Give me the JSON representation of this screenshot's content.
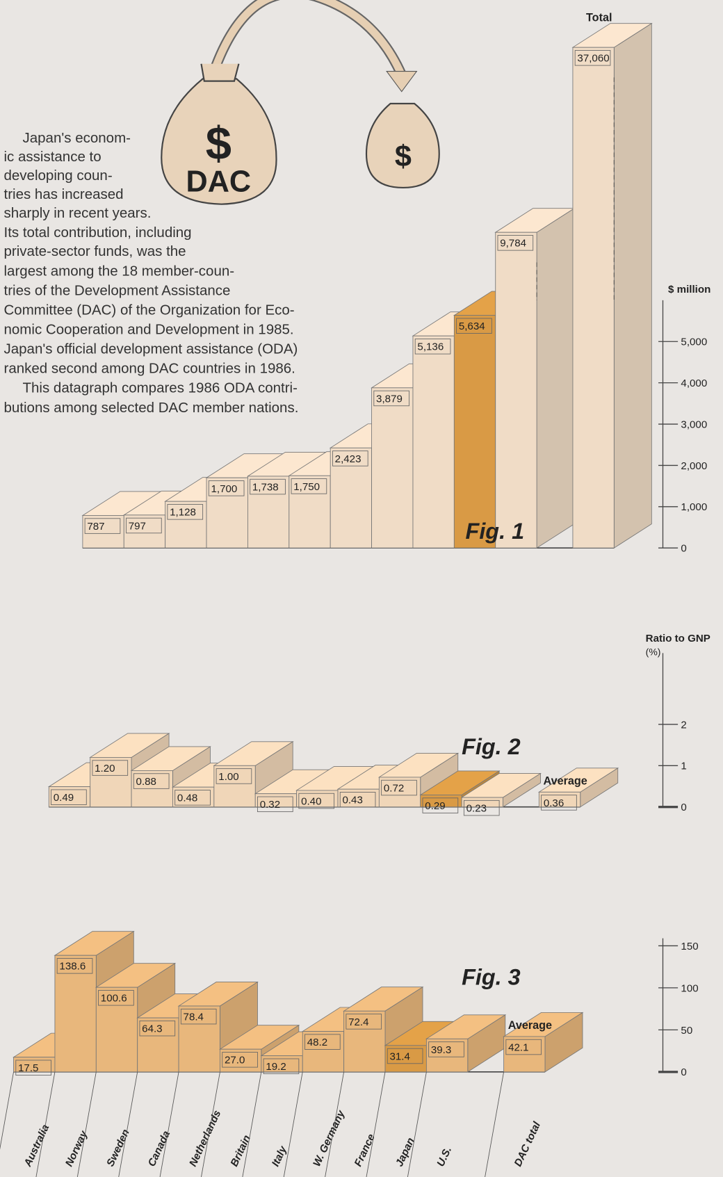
{
  "intro": {
    "lines": [
      "Japan's econom-",
      "ic assistance to",
      "developing coun-",
      "tries has increased",
      "sharply in recent years.",
      "Its total contribution, including",
      "private-sector funds, was the",
      "largest among the 18 member-coun-",
      "tries of the Development Assistance",
      "Committee (DAC) of the Organization for Eco-",
      "nomic Cooperation and Development in 1985.",
      "Japan's official development assistance (ODA)",
      "ranked second among DAC countries in 1986.",
      "This datagraph compares 1986 ODA contri-",
      "butions among selected DAC member nations."
    ]
  },
  "illustration": {
    "large_bag": [
      "$",
      "DAC"
    ],
    "small_bag": "$"
  },
  "chart_data": [
    {
      "type": "bar",
      "title": "Fig. 1",
      "y_label": "$ million",
      "last_label": "Total",
      "categories": [
        "Australia",
        "Norway",
        "Sweden",
        "Canada",
        "Netherlands",
        "Britain",
        "Italy",
        "W. Germany",
        "France",
        "Japan",
        "U.S.",
        "DAC total"
      ],
      "values": [
        787,
        797,
        1128,
        1700,
        1738,
        1750,
        2423,
        3879,
        5136,
        5634,
        9784,
        37060
      ],
      "value_labels": [
        "787",
        "797",
        "1,128",
        "1,700",
        "1,738",
        "1,750",
        "2,423",
        "3,879",
        "5,136",
        "5,634",
        "9,784",
        "37,060"
      ],
      "colors": [
        "#f0dcc6",
        "#f0dcc6",
        "#f0dcc6",
        "#f0dcc6",
        "#f0dcc6",
        "#f0dcc6",
        "#f0dcc6",
        "#f0dcc6",
        "#f0dcc6",
        "#d99a45",
        "#f0dcc6",
        "#f0dcc6"
      ],
      "ylim": [
        0,
        5000
      ],
      "scale_break": true,
      "yticks": [
        0,
        {
          "value": 1000,
          "label": "1,000"
        },
        {
          "value": 2000,
          "label": "2,000"
        },
        {
          "value": 3000,
          "label": "3,000"
        },
        {
          "value": 4000,
          "label": "4,000"
        },
        {
          "value": 5000,
          "label": "5,000"
        }
      ]
    },
    {
      "type": "bar",
      "title": "Fig. 2",
      "y_label": "Ratio to GNP",
      "y_unit": "(%)",
      "last_label": "Average",
      "values": [
        0.49,
        1.2,
        0.88,
        0.48,
        1.0,
        0.32,
        0.4,
        0.43,
        0.72,
        0.29,
        0.23,
        0.36
      ],
      "value_labels": [
        "0.49",
        "1.20",
        "0.88",
        "0.48",
        "1.00",
        "0.32",
        "0.40",
        "0.43",
        "0.72",
        "0.29",
        "0.23",
        "0.36"
      ],
      "colors": [
        "#f0d6b8",
        "#f0d6b8",
        "#f0d6b8",
        "#f0d6b8",
        "#f0d6b8",
        "#f0d6b8",
        "#f0d6b8",
        "#f0d6b8",
        "#f0d6b8",
        "#d99a45",
        "#f0d6b8",
        "#f0d6b8"
      ],
      "ylim": [
        0,
        2
      ],
      "yticks": [
        0,
        1,
        2
      ]
    },
    {
      "type": "bar",
      "title": "Fig. 3",
      "last_label": "Average",
      "values": [
        17.5,
        138.6,
        100.6,
        64.3,
        78.4,
        27.0,
        19.2,
        48.2,
        72.4,
        31.4,
        39.3,
        42.1
      ],
      "value_labels": [
        "17.5",
        "138.6",
        "100.6",
        "64.3",
        "78.4",
        "27.0",
        "19.2",
        "48.2",
        "72.4",
        "31.4",
        "39.3",
        "42.1"
      ],
      "colors": [
        "#e8b77c",
        "#e8b77c",
        "#e8b77c",
        "#e8b77c",
        "#e8b77c",
        "#e8b77c",
        "#e8b77c",
        "#e8b77c",
        "#e8b77c",
        "#d99a45",
        "#e8b77c",
        "#e8b77c"
      ],
      "ylim": [
        0,
        150
      ],
      "yticks": [
        0,
        50,
        100,
        150
      ]
    }
  ]
}
